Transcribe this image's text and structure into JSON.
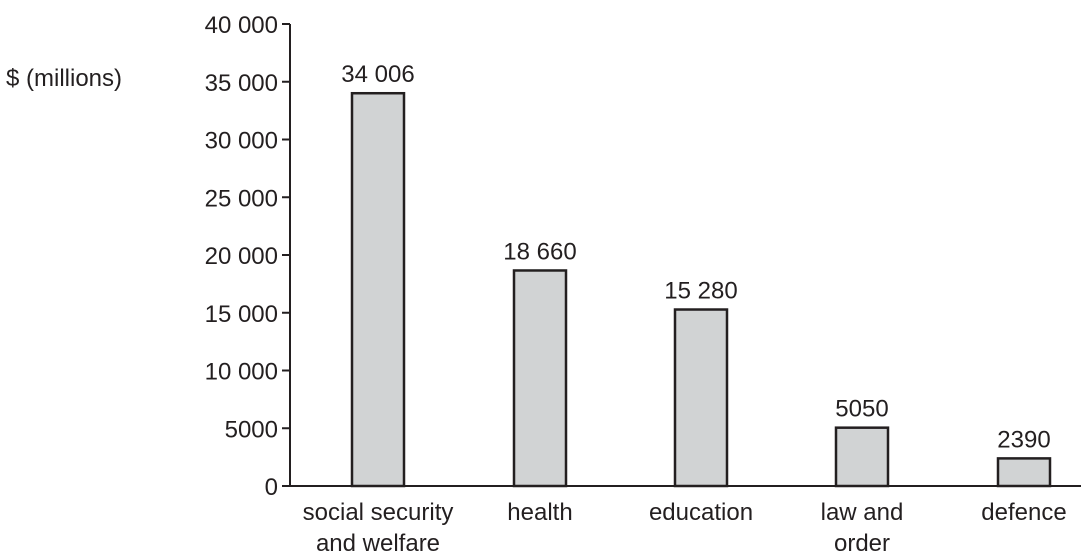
{
  "chart_data": {
    "type": "bar",
    "ylabel": "$ (millions)",
    "xlabel": "",
    "title": "",
    "categories": [
      [
        "social security",
        "and welfare"
      ],
      [
        "health"
      ],
      [
        "education"
      ],
      [
        "law and",
        "order"
      ],
      [
        "defence"
      ]
    ],
    "values": [
      34006,
      18660,
      15280,
      5050,
      2390
    ],
    "value_labels": [
      "34 006",
      "18 660",
      "15 280",
      "5050",
      "2390"
    ],
    "ylim": [
      0,
      40000
    ],
    "yticks": [
      0,
      5000,
      10000,
      15000,
      20000,
      25000,
      30000,
      35000,
      40000
    ],
    "ytick_labels": [
      "0",
      "5000",
      "10 000",
      "15 000",
      "20 000",
      "25 000",
      "30 000",
      "35 000",
      "40 000"
    ],
    "grid": false,
    "legend": "none",
    "colors": {
      "bar_fill": "#d1d3d4",
      "bar_stroke": "#231f20",
      "text": "#231f20"
    }
  }
}
